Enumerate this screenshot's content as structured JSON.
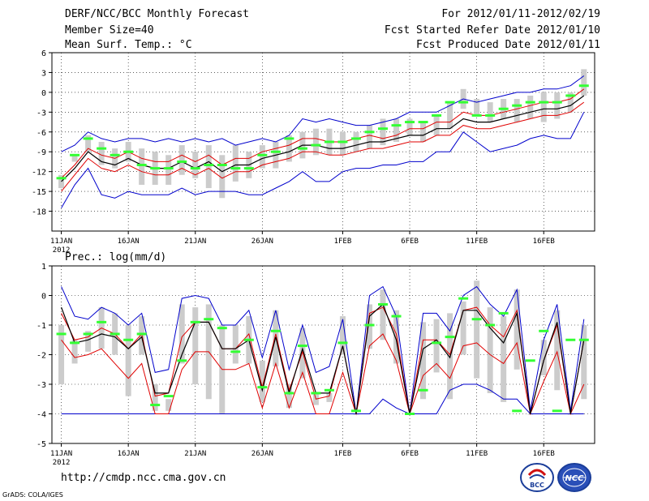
{
  "header": {
    "title": "DERF/NCC/BCC Monthly Forecast",
    "member_size": "Member Size=40",
    "variable": "Mean Surf. Temp.: °C",
    "period": "For 2012/01/11-2012/02/19",
    "start_date": "Fcst Started Refer Date 2012/01/10",
    "produced_date": "Fcst Produced Date 2012/01/11"
  },
  "precip_label": "Prec.: log(mm/d)",
  "footer": {
    "url": "http://cmdp.ncc.cma.gov.cn",
    "grads": "GrADS: COLA/IGES",
    "logo_bcc": "BCC",
    "logo_ncc": "NCC"
  },
  "colors": {
    "envelope": "#0000cc",
    "spread": "#e00000",
    "mean": "#000000",
    "box": "#cccccc",
    "marker": "#33ff33"
  },
  "chart_data": [
    {
      "type": "line",
      "title": "Mean Surf. Temp.: °C",
      "x_tick_labels": [
        "11JAN",
        "16JAN",
        "21JAN",
        "26JAN",
        "1FEB",
        "6FEB",
        "11FEB",
        "16FEB"
      ],
      "x_tick_days": [
        1,
        6,
        11,
        16,
        22,
        27,
        32,
        37
      ],
      "year_label": "2012",
      "x_range": [
        0.3,
        40.8
      ],
      "ylim": [
        -21,
        6
      ],
      "yticks": [
        6,
        3,
        0,
        -3,
        -6,
        -9,
        -12,
        -15,
        -18
      ],
      "days": [
        1,
        2,
        3,
        4,
        5,
        6,
        7,
        8,
        9,
        10,
        11,
        12,
        13,
        14,
        15,
        16,
        17,
        18,
        19,
        20,
        21,
        22,
        23,
        24,
        25,
        26,
        27,
        28,
        29,
        30,
        31,
        32,
        33,
        34,
        35,
        36,
        37,
        38,
        39,
        40
      ],
      "series": [
        {
          "name": "max",
          "values": [
            -9,
            -8,
            -6,
            -7,
            -7.5,
            -7,
            -7,
            -7.5,
            -7,
            -7.5,
            -7,
            -7.5,
            -7,
            -8,
            -7.5,
            -7,
            -7.5,
            -6.5,
            -4,
            -4.5,
            -4,
            -4.5,
            -5,
            -5,
            -4.5,
            -4,
            -3,
            -3,
            -3,
            -2,
            -1,
            -1.5,
            -1,
            -0.5,
            0,
            0,
            0.5,
            0.5,
            1,
            2.5
          ]
        },
        {
          "name": "spread_upper",
          "values": [
            -13,
            -11,
            -8.5,
            -9.5,
            -10,
            -9,
            -10,
            -10.5,
            -10.5,
            -9.5,
            -10.5,
            -9.5,
            -11,
            -10,
            -10,
            -9,
            -8.5,
            -8,
            -7,
            -7,
            -7.5,
            -7.5,
            -7,
            -6.5,
            -7,
            -6.5,
            -5.5,
            -5.5,
            -4.5,
            -4.5,
            -3,
            -3.5,
            -3.5,
            -3,
            -2.5,
            -2,
            -1.5,
            -1.5,
            -1,
            0.5
          ]
        },
        {
          "name": "mean",
          "values": [
            -13.5,
            -11.5,
            -9,
            -10.5,
            -11,
            -10,
            -11,
            -11.5,
            -11.5,
            -10.5,
            -11.5,
            -10.5,
            -12,
            -11,
            -11,
            -10,
            -9.5,
            -9,
            -8,
            -8,
            -8.5,
            -8.5,
            -8,
            -7.5,
            -7.5,
            -7,
            -6.5,
            -6.5,
            -5.5,
            -5.5,
            -4,
            -4.5,
            -4.5,
            -4,
            -3.5,
            -3,
            -2.5,
            -2.5,
            -2,
            -0.5
          ]
        },
        {
          "name": "spread_lower",
          "values": [
            -15,
            -12.5,
            -10,
            -11.5,
            -12,
            -11,
            -12,
            -12.5,
            -12.5,
            -11.5,
            -12.5,
            -11.5,
            -13,
            -12,
            -12,
            -11,
            -10.5,
            -10,
            -9,
            -9,
            -9.5,
            -9.5,
            -9,
            -8.5,
            -8.5,
            -8,
            -7.5,
            -7.5,
            -6.5,
            -6.5,
            -5,
            -5.5,
            -5.5,
            -5,
            -4.5,
            -4,
            -3.5,
            -3.5,
            -3,
            -1.5
          ]
        },
        {
          "name": "min",
          "values": [
            -17.5,
            -14,
            -11.5,
            -15.5,
            -16,
            -15,
            -15.5,
            -15.5,
            -15.5,
            -14.5,
            -15.5,
            -15,
            -15,
            -15,
            -15.5,
            -15.5,
            -14.5,
            -13.5,
            -12,
            -13.5,
            -13.5,
            -12,
            -11.5,
            -11.5,
            -11,
            -11,
            -10.5,
            -10.5,
            -9,
            -9,
            -6,
            -7.5,
            -9,
            -8.5,
            -8,
            -7,
            -6.5,
            -7,
            -7,
            -3
          ]
        },
        {
          "name": "box_high",
          "values": [
            -12.5,
            -9.5,
            -6.5,
            -7.5,
            -8.5,
            -7.5,
            -8.5,
            -9,
            -9.5,
            -8,
            -9,
            -8,
            -9.5,
            -8,
            -9,
            -8,
            -7.5,
            -6.5,
            -6,
            -5.5,
            -5.5,
            -6,
            -6,
            -5,
            -4,
            -4,
            -4,
            -4.5,
            -3.5,
            -1.5,
            0.5,
            -1,
            -1.5,
            -1,
            -1,
            -0.5,
            0,
            0,
            0,
            3.5
          ]
        },
        {
          "name": "box_low",
          "values": [
            -14.5,
            -10.5,
            -9,
            -11,
            -11.5,
            -10.5,
            -14,
            -14,
            -14,
            -12.5,
            -13,
            -14.5,
            -16,
            -13.5,
            -13,
            -11.5,
            -11.5,
            -10.5,
            -10,
            -9.5,
            -9.5,
            -9.5,
            -9,
            -8.5,
            -8,
            -7.5,
            -6.5,
            -7.5,
            -6.5,
            -5.5,
            -2.5,
            -3.5,
            -4.5,
            -4,
            -4.5,
            -4,
            -4.5,
            -4,
            -3,
            -0.5
          ]
        },
        {
          "name": "control",
          "values": [
            -13,
            -9.5,
            -7,
            -8.5,
            -9.5,
            -9,
            -11,
            -11.5,
            -11.5,
            -10.5,
            -11.5,
            -11,
            -11,
            -11.5,
            -11.5,
            -9.5,
            -9,
            -7,
            -8.5,
            -8,
            -7.5,
            -7.5,
            -7,
            -6,
            -5.5,
            -5,
            -4.5,
            -4.5,
            -3.5,
            -1.5,
            -1.5,
            -3.5,
            -3.5,
            -2.5,
            -2,
            -1.5,
            -1.5,
            -1.5,
            -0.5,
            1
          ]
        }
      ]
    },
    {
      "type": "line",
      "title": "Prec.: log(mm/d)",
      "x_tick_labels": [
        "11JAN",
        "16JAN",
        "21JAN",
        "26JAN",
        "1FEB",
        "6FEB",
        "11FEB",
        "16FEB"
      ],
      "x_tick_days": [
        1,
        6,
        11,
        16,
        22,
        27,
        32,
        37
      ],
      "year_label": "2012",
      "x_range": [
        0.3,
        40.8
      ],
      "ylim": [
        -5,
        1
      ],
      "yticks": [
        1,
        0,
        -1,
        -2,
        -3,
        -4,
        -5
      ],
      "days": [
        1,
        2,
        3,
        4,
        5,
        6,
        7,
        8,
        9,
        10,
        11,
        12,
        13,
        14,
        15,
        16,
        17,
        18,
        19,
        20,
        21,
        22,
        23,
        24,
        25,
        26,
        27,
        28,
        29,
        30,
        31,
        32,
        33,
        34,
        35,
        36,
        37,
        38,
        39,
        40
      ],
      "series": [
        {
          "name": "max",
          "values": [
            0.3,
            -0.7,
            -0.8,
            -0.4,
            -0.6,
            -1,
            -0.6,
            -2.6,
            -2.5,
            -0.1,
            0,
            -0.1,
            -1,
            -1,
            -0.5,
            -2.1,
            -0.5,
            -2.5,
            -1,
            -2.6,
            -2.4,
            -0.8,
            -4,
            0,
            0.3,
            -0.7,
            -4,
            -0.6,
            -0.6,
            -1.2,
            0,
            0.3,
            -0.3,
            -0.7,
            0.2,
            -3.9,
            -1.5,
            -0.3,
            -3.9,
            -0.8
          ]
        },
        {
          "name": "spread_upper",
          "values": [
            -0.6,
            -1.5,
            -1.4,
            -1.1,
            -1.3,
            -1.8,
            -1.3,
            -3.4,
            -3.3,
            -1.4,
            -0.9,
            -0.9,
            -1.8,
            -1.8,
            -1.3,
            -3.1,
            -1.3,
            -3.2,
            -1.9,
            -3.5,
            -3.4,
            -1.7,
            -4,
            -0.6,
            -0.4,
            -1.3,
            -4,
            -1.5,
            -1.5,
            -2,
            -0.5,
            -0.4,
            -1,
            -1.4,
            -0.5,
            -4,
            -2.2,
            -1,
            -4,
            -1.5
          ]
        },
        {
          "name": "mean",
          "values": [
            -0.4,
            -1.6,
            -1.5,
            -1.3,
            -1.4,
            -1.8,
            -1.4,
            -3.3,
            -3.3,
            -2,
            -0.9,
            -0.9,
            -1.8,
            -1.8,
            -1.5,
            -3.2,
            -1.4,
            -3.3,
            -1.8,
            -3.3,
            -3.3,
            -1.7,
            -4,
            -0.7,
            -0.3,
            -1.5,
            -4,
            -1.8,
            -1.5,
            -2.1,
            -0.5,
            -0.5,
            -1.1,
            -1.6,
            -0.6,
            -4,
            -2.2,
            -0.9,
            -4,
            -1.5
          ]
        },
        {
          "name": "spread_lower",
          "values": [
            -1.5,
            -2.1,
            -2,
            -1.8,
            -2.3,
            -2.8,
            -2.3,
            -4,
            -4,
            -2.5,
            -1.9,
            -1.9,
            -2.5,
            -2.5,
            -2.3,
            -3.8,
            -2.3,
            -3.8,
            -2.6,
            -4,
            -4,
            -2.6,
            -4,
            -1.7,
            -1.3,
            -2.2,
            -4,
            -2.7,
            -2.3,
            -2.8,
            -1.7,
            -1.6,
            -2,
            -2.3,
            -1.6,
            -4,
            -2.9,
            -1.9,
            -4,
            -3
          ]
        },
        {
          "name": "min",
          "values": [
            -4,
            -4,
            -4,
            -4,
            -4,
            -4,
            -4,
            -4,
            -4,
            -4,
            -4,
            -4,
            -4,
            -4,
            -4,
            -4,
            -4,
            -4,
            -4,
            -4,
            -4,
            -4,
            -4,
            -4,
            -3.5,
            -3.8,
            -4,
            -4,
            -4,
            -3.2,
            -3,
            -3,
            -3.2,
            -3.5,
            -3.5,
            -4,
            -4,
            -4,
            -4,
            -4
          ]
        },
        {
          "name": "box_high",
          "values": [
            -1,
            -1.5,
            -1.2,
            -0.4,
            -0.6,
            -1,
            -0.7,
            -3,
            -3.5,
            -0.3,
            -0.4,
            -0.3,
            -1,
            -1,
            -0.7,
            -2.2,
            -0.5,
            -3,
            -1.1,
            -3.3,
            -3.3,
            -0.7,
            -4,
            -0.3,
            0.2,
            -0.5,
            -4,
            -0.9,
            -0.8,
            -0.6,
            -0.2,
            0.5,
            -0.4,
            -0.7,
            0.2,
            -4,
            -1.5,
            -0.5,
            -4,
            -1
          ]
        },
        {
          "name": "box_low",
          "values": [
            -3,
            -2.3,
            -1.9,
            -1.8,
            -2,
            -3.4,
            -2,
            -3.9,
            -3.9,
            -2.3,
            -3,
            -3.5,
            -4,
            -2.3,
            -2.3,
            -3.6,
            -2.4,
            -3.8,
            -2.8,
            -3.7,
            -3.6,
            -2,
            -4,
            -1.8,
            -1.5,
            -2.3,
            -4,
            -3.5,
            -2.6,
            -3.5,
            -2,
            -2.8,
            -3.3,
            -3.6,
            -2.5,
            -4,
            -2.7,
            -3.2,
            -4,
            -3.5
          ]
        },
        {
          "name": "control",
          "values": [
            -1.3,
            -1.6,
            -1.3,
            -0.9,
            -1.3,
            -1.5,
            -1.3,
            -3.7,
            -3.4,
            -2.2,
            -0.9,
            -0.8,
            -1.1,
            -1.9,
            -1.5,
            -3.1,
            -1.2,
            -3.3,
            -1.7,
            -3.3,
            -3.2,
            -1.6,
            -3.9,
            -1,
            -0.3,
            -0.7,
            -4,
            -3.2,
            -1.6,
            -1.4,
            -0.1,
            -0.8,
            -1,
            -0.6,
            -3.9,
            -2.2,
            -1.2,
            -3.9,
            -1.5,
            -1.5
          ]
        }
      ]
    }
  ]
}
